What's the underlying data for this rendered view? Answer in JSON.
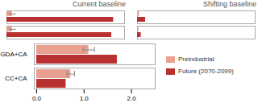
{
  "chart_data": [
    {
      "type": "bar",
      "orientation": "horizontal",
      "title": "Current baseline",
      "categories": [
        null,
        null
      ],
      "series": [
        {
          "name": "Preindustrial",
          "color": "#e8a090",
          "values": [
            0.15,
            0.15
          ],
          "error": [
            0.07,
            0.07
          ]
        },
        {
          "name": "Future (2070-2099)",
          "color": "#b83030",
          "values": [
            2.9,
            2.85
          ]
        }
      ],
      "xlim": [
        0,
        3.2
      ],
      "tick_labels": false
    },
    {
      "type": "bar",
      "orientation": "horizontal",
      "title": "Shifting baseline",
      "categories": [
        null,
        null
      ],
      "series": [
        {
          "name": "Preindustrial",
          "color": "#e8a090",
          "values": [
            0.05,
            0.035
          ]
        },
        {
          "name": "Future (2070-2099)",
          "color": "#b83030",
          "values": [
            0.22,
            0.1
          ]
        }
      ],
      "xlim": [
        0,
        3.2
      ],
      "tick_labels": false
    },
    {
      "type": "bar",
      "orientation": "horizontal",
      "categories": [
        "GDA+CA",
        "CC+CA"
      ],
      "series": [
        {
          "name": "Preindustrial",
          "color": "#e8a090",
          "values": [
            1.1,
            0.72
          ],
          "error": [
            0.12,
            0.08
          ]
        },
        {
          "name": "Future (2070-2099)",
          "color": "#b83030",
          "values": [
            1.7,
            0.62
          ]
        }
      ],
      "xlim": [
        -0.05,
        2.5
      ],
      "xticks": [
        0,
        1,
        2
      ],
      "legend": "right"
    }
  ]
}
